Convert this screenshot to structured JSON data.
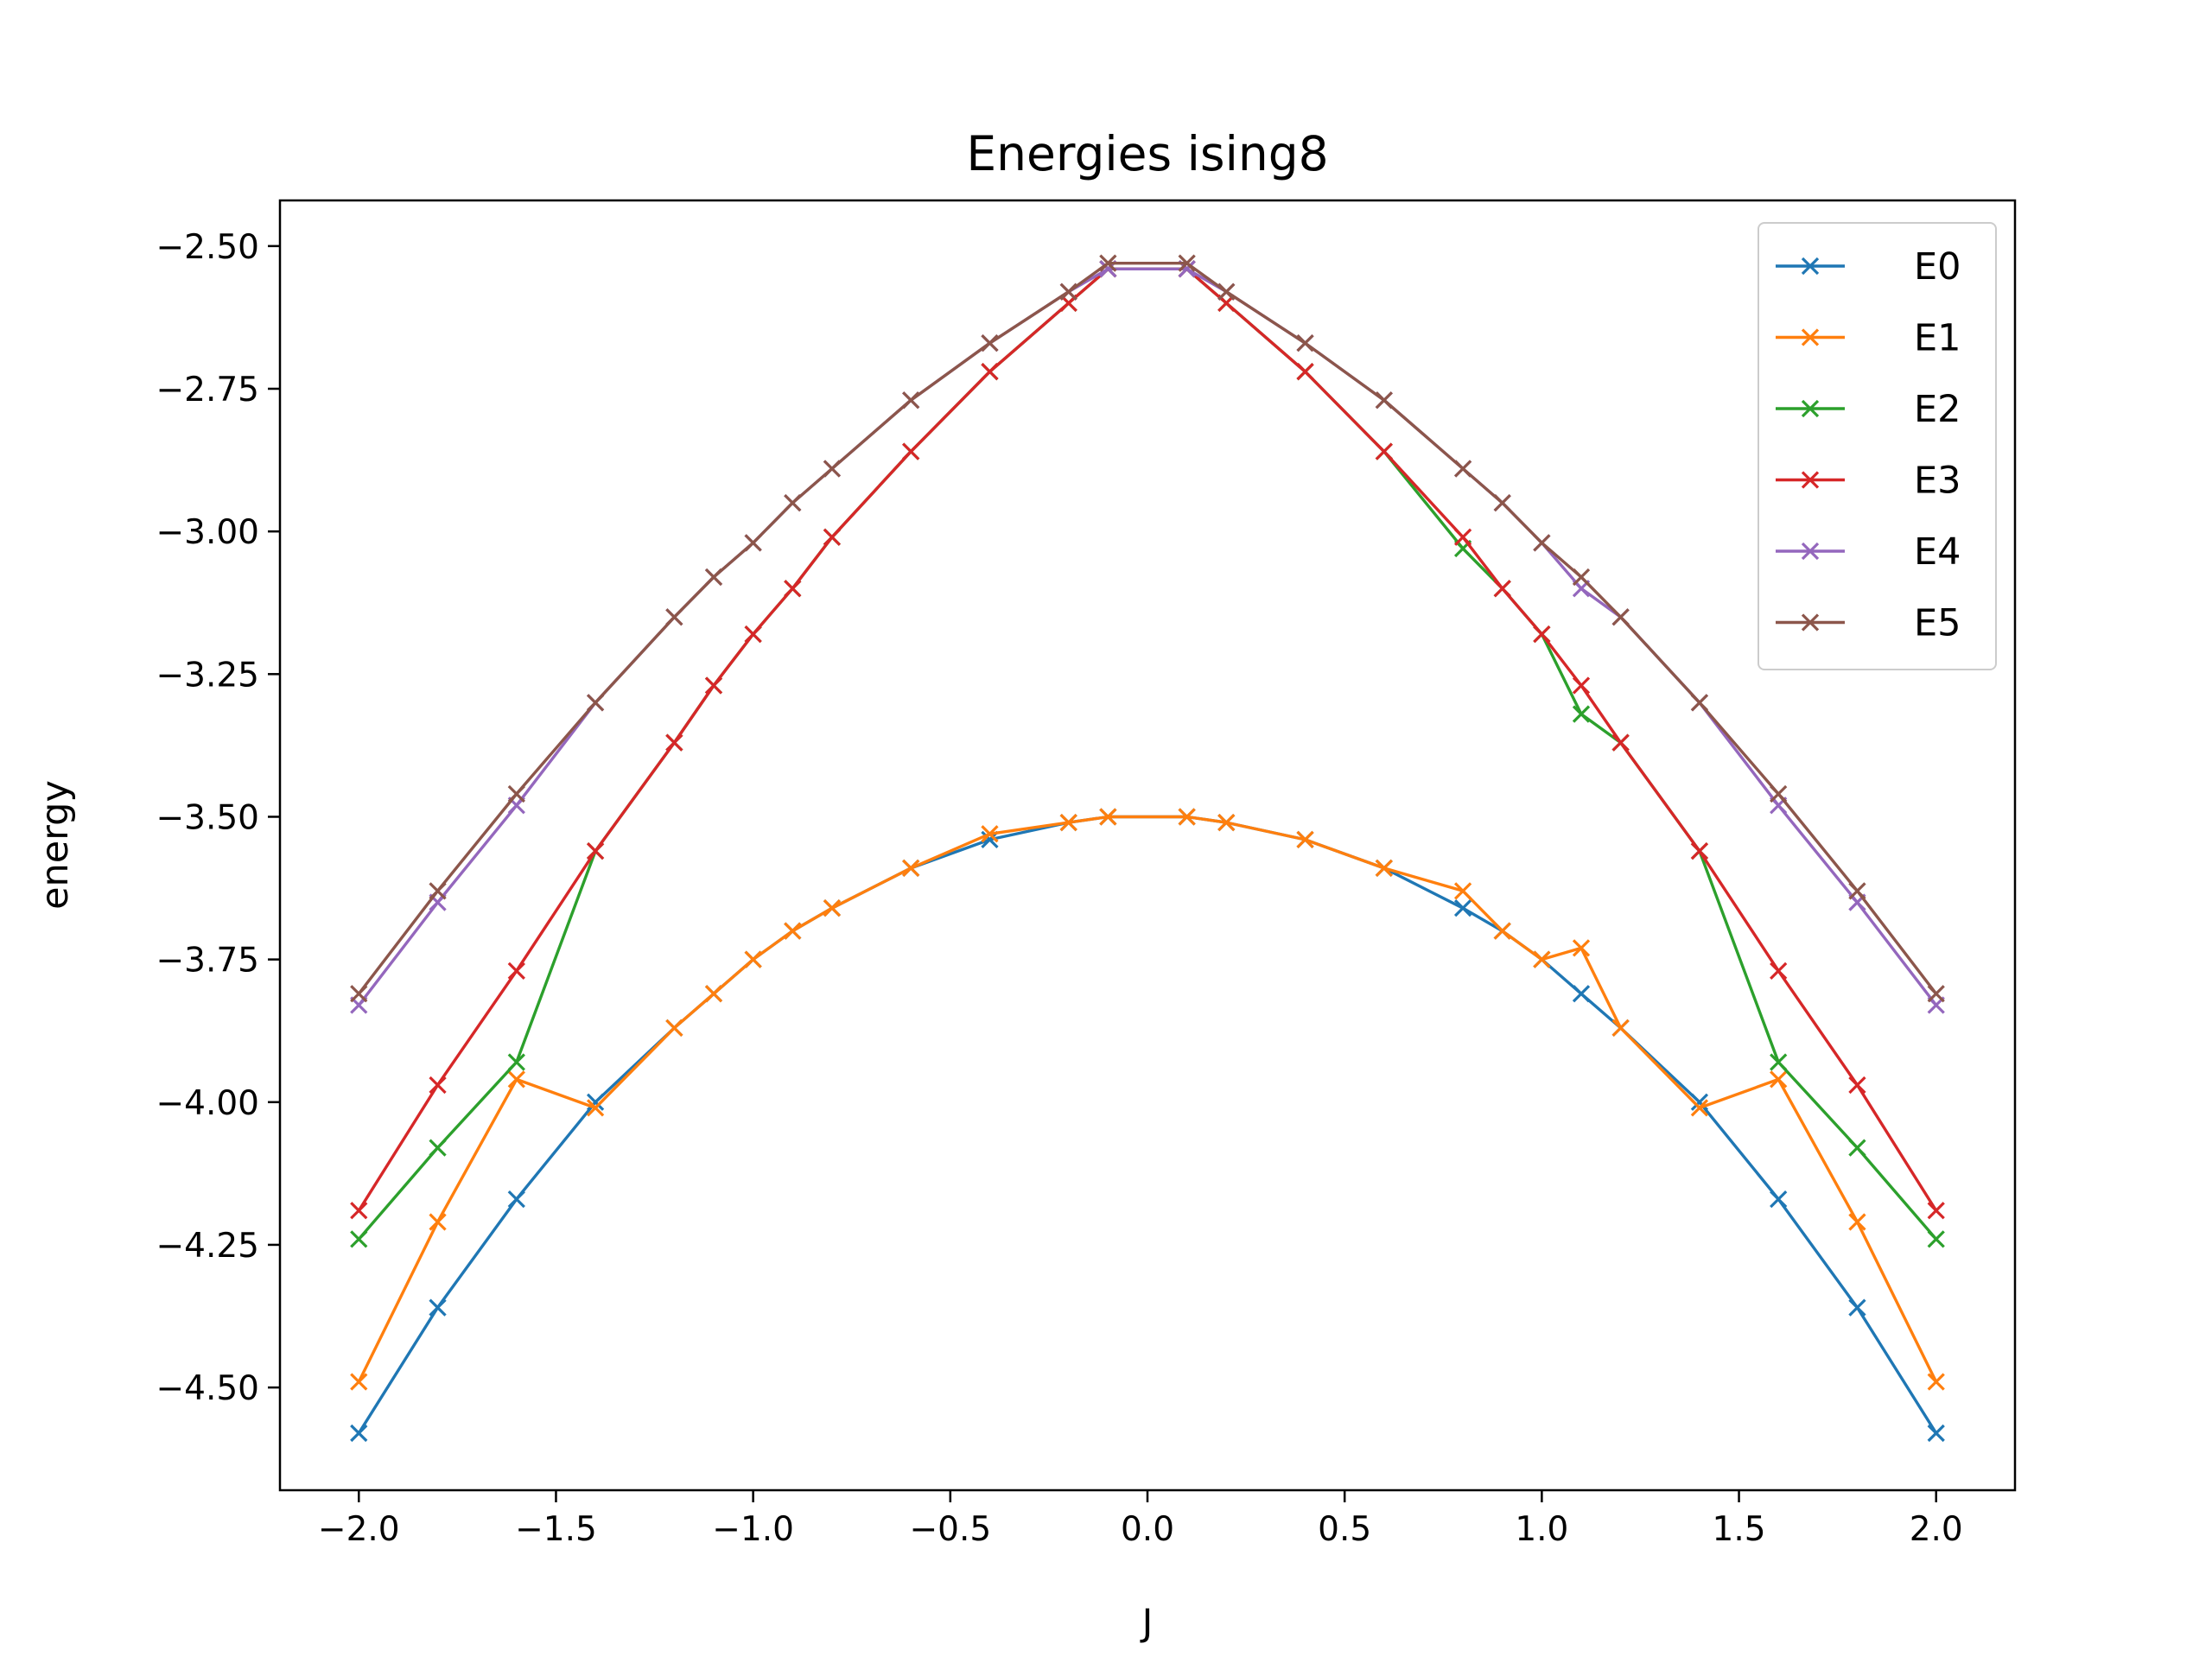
{
  "chart_data": {
    "type": "line",
    "title": "Energies ising8",
    "xlabel": "J",
    "ylabel": "energy",
    "xlim": [
      -2.2,
      2.2
    ],
    "ylim": [
      -4.68,
      -2.42
    ],
    "xticks": [
      -2.0,
      -1.5,
      -1.0,
      -0.5,
      0.0,
      0.5,
      1.0,
      1.5,
      2.0
    ],
    "xtick_labels": [
      "−2.0",
      "−1.5",
      "−1.0",
      "−0.5",
      "0.0",
      "0.5",
      "1.0",
      "1.5",
      "2.0"
    ],
    "yticks": [
      -2.5,
      -2.75,
      -3.0,
      -3.25,
      -3.5,
      -3.75,
      -4.0,
      -4.25,
      -4.5
    ],
    "ytick_labels": [
      "−2.50",
      "−2.75",
      "−3.00",
      "−3.25",
      "−3.50",
      "−3.75",
      "−4.00",
      "−4.25",
      "−4.50"
    ],
    "grid": false,
    "legend_position": "upper-right",
    "marker": "x",
    "x": [
      -2.0,
      -1.8,
      -1.6,
      -1.4,
      -1.2,
      -1.1,
      -1.0,
      -0.9,
      -0.8,
      -0.6,
      -0.4,
      -0.2,
      -0.1,
      0.1,
      0.2,
      0.4,
      0.6,
      0.8,
      0.9,
      1.0,
      1.1,
      1.2,
      1.4,
      1.6,
      1.8,
      2.0
    ],
    "series": [
      {
        "name": "E0",
        "color": "#1f77b4",
        "values": [
          -4.58,
          -4.36,
          -4.17,
          -4.0,
          -3.87,
          -3.81,
          -3.75,
          -3.7,
          -3.66,
          -3.59,
          -3.54,
          -3.51,
          -3.5,
          -3.5,
          -3.51,
          -3.54,
          -3.59,
          -3.66,
          -3.7,
          -3.75,
          -3.81,
          -3.87,
          -4.0,
          -4.17,
          -4.36,
          -4.58
        ]
      },
      {
        "name": "E1",
        "color": "#ff7f0e",
        "values": [
          -4.49,
          -4.21,
          -3.96,
          -4.01,
          -3.87,
          -3.81,
          -3.75,
          -3.7,
          -3.66,
          -3.59,
          -3.53,
          -3.51,
          -3.5,
          -3.5,
          -3.51,
          -3.54,
          -3.59,
          -3.63,
          -3.7,
          -3.75,
          -3.73,
          -3.87,
          -4.01,
          -3.96,
          -4.21,
          -4.49
        ]
      },
      {
        "name": "E2",
        "color": "#2ca02c",
        "values": [
          -4.24,
          -4.08,
          -3.93,
          -3.56,
          -3.37,
          -3.27,
          -3.18,
          -3.1,
          -3.01,
          -2.86,
          -2.72,
          -2.6,
          -2.54,
          -2.54,
          -2.6,
          -2.72,
          -2.86,
          -3.03,
          -3.1,
          -3.18,
          -3.32,
          -3.37,
          -3.56,
          -3.93,
          -4.08,
          -4.24
        ]
      },
      {
        "name": "E3",
        "color": "#d62728",
        "values": [
          -4.19,
          -3.97,
          -3.77,
          -3.56,
          -3.37,
          -3.27,
          -3.18,
          -3.1,
          -3.01,
          -2.86,
          -2.72,
          -2.6,
          -2.54,
          -2.54,
          -2.6,
          -2.72,
          -2.86,
          -3.01,
          -3.1,
          -3.18,
          -3.27,
          -3.37,
          -3.56,
          -3.77,
          -3.97,
          -4.19
        ]
      },
      {
        "name": "E4",
        "color": "#9467bd",
        "values": [
          -3.83,
          -3.65,
          -3.48,
          -3.3,
          -3.15,
          -3.08,
          -3.02,
          -2.95,
          -2.89,
          -2.77,
          -2.67,
          -2.58,
          -2.54,
          -2.54,
          -2.58,
          -2.67,
          -2.77,
          -2.89,
          -2.95,
          -3.02,
          -3.1,
          -3.15,
          -3.3,
          -3.48,
          -3.65,
          -3.83
        ]
      },
      {
        "name": "E5",
        "color": "#8c564b",
        "values": [
          -3.81,
          -3.63,
          -3.46,
          -3.3,
          -3.15,
          -3.08,
          -3.02,
          -2.95,
          -2.89,
          -2.77,
          -2.67,
          -2.58,
          -2.53,
          -2.53,
          -2.58,
          -2.67,
          -2.77,
          -2.89,
          -2.95,
          -3.02,
          -3.08,
          -3.15,
          -3.3,
          -3.46,
          -3.63,
          -3.81
        ]
      }
    ]
  }
}
